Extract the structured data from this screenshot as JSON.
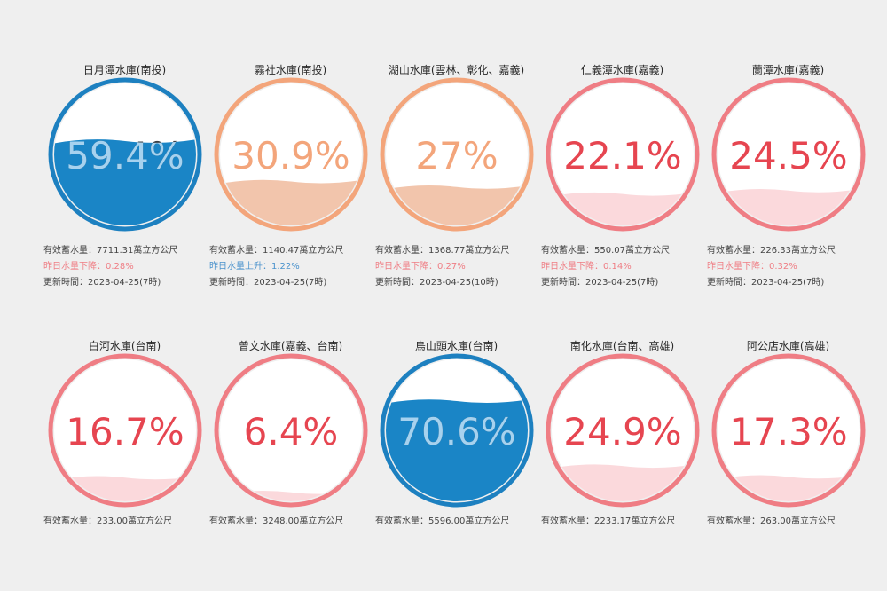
{
  "reservoirs": [
    {
      "name": "日月潭水庫(南投)",
      "percent": "59.4%",
      "level": 0.594,
      "theme": "blue",
      "capacity": "有效蓄水量：7711.31萬立方公尺",
      "change": "昨日水量下降：0.28%",
      "change_dir": "down",
      "updated": "更新時間：2023-04-25(7時)"
    },
    {
      "name": "霧社水庫(南投)",
      "percent": "30.9%",
      "level": 0.309,
      "theme": "orange",
      "capacity": "有效蓄水量：1140.47萬立方公尺",
      "change": "昨日水量上升：1.22%",
      "change_dir": "up",
      "updated": "更新時間：2023-04-25(7時)"
    },
    {
      "name": "湖山水庫(雲林、彰化、嘉義)",
      "percent": "27%",
      "level": 0.27,
      "theme": "orange",
      "capacity": "有效蓄水量：1368.77萬立方公尺",
      "change": "昨日水量下降：0.27%",
      "change_dir": "down",
      "updated": "更新時間：2023-04-25(10時)"
    },
    {
      "name": "仁義潭水庫(嘉義)",
      "percent": "22.1%",
      "level": 0.221,
      "theme": "red",
      "capacity": "有效蓄水量：550.07萬立方公尺",
      "change": "昨日水量下降：0.14%",
      "change_dir": "down",
      "updated": "更新時間：2023-04-25(7時)"
    },
    {
      "name": "蘭潭水庫(嘉義)",
      "percent": "24.5%",
      "level": 0.245,
      "theme": "red",
      "capacity": "有效蓄水量：226.33萬立方公尺",
      "change": "昨日水量下降：0.32%",
      "change_dir": "down",
      "updated": "更新時間：2023-04-25(7時)"
    },
    {
      "name": "白河水庫(台南)",
      "percent": "16.7%",
      "level": 0.167,
      "theme": "red",
      "capacity": "有效蓄水量：233.00萬立方公尺"
    },
    {
      "name": "曾文水庫(嘉義、台南)",
      "percent": "6.4%",
      "level": 0.064,
      "theme": "red",
      "capacity": "有效蓄水量：3248.00萬立方公尺"
    },
    {
      "name": "烏山頭水庫(台南)",
      "percent": "70.6%",
      "level": 0.706,
      "theme": "blue",
      "capacity": "有效蓄水量：5596.00萬立方公尺"
    },
    {
      "name": "南化水庫(台南、高雄)",
      "percent": "24.9%",
      "level": 0.249,
      "theme": "red",
      "capacity": "有效蓄水量：2233.17萬立方公尺"
    },
    {
      "name": "阿公店水庫(高雄)",
      "percent": "17.3%",
      "level": 0.173,
      "theme": "red",
      "capacity": "有效蓄水量：263.00萬立方公尺"
    }
  ],
  "themes": {
    "blue": {
      "ring": "#1d80c0",
      "fill": "#1a85c6",
      "text_below": "#3a3f45",
      "text_over": "#a6d2ef"
    },
    "orange": {
      "ring": "#f3a57b",
      "fill": "#f2c5ac",
      "text_below": "#f3a57b",
      "text_over": "#f3a57b"
    },
    "red": {
      "ring": "#ef7d84",
      "fill": "#fbd9dc",
      "text_below": "#e64550",
      "text_over": "#e64550"
    }
  },
  "text_colors": {
    "info": "#444444",
    "down": "#ef7d84",
    "up": "#4a92cc"
  }
}
